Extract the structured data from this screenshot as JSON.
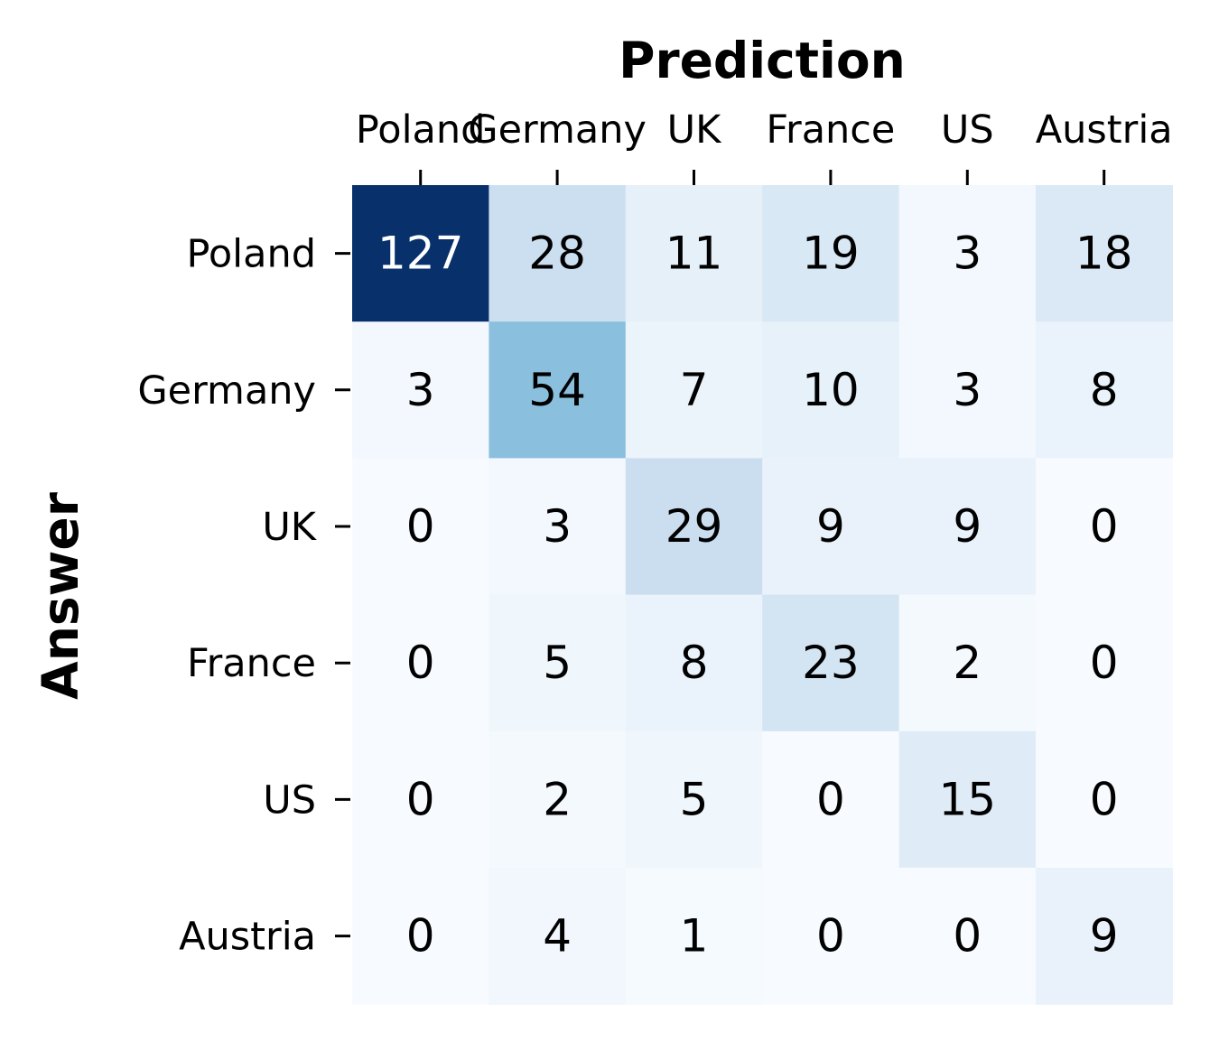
{
  "chart_data": {
    "type": "heatmap",
    "title": "",
    "xlabel": "Prediction",
    "ylabel": "Answer",
    "x_categories": [
      "Poland",
      "Germany",
      "UK",
      "France",
      "US",
      "Austria"
    ],
    "y_categories": [
      "Poland",
      "Germany",
      "UK",
      "France",
      "US",
      "Austria"
    ],
    "values": [
      [
        127,
        28,
        11,
        19,
        3,
        18
      ],
      [
        3,
        54,
        7,
        10,
        3,
        8
      ],
      [
        0,
        3,
        29,
        9,
        9,
        0
      ],
      [
        0,
        5,
        8,
        23,
        2,
        0
      ],
      [
        0,
        2,
        5,
        0,
        15,
        0
      ],
      [
        0,
        4,
        1,
        0,
        0,
        9
      ]
    ],
    "vmin": 0,
    "vmax": 127,
    "colormap": "Blues",
    "colorbar": false,
    "x_axis_position": "top"
  }
}
